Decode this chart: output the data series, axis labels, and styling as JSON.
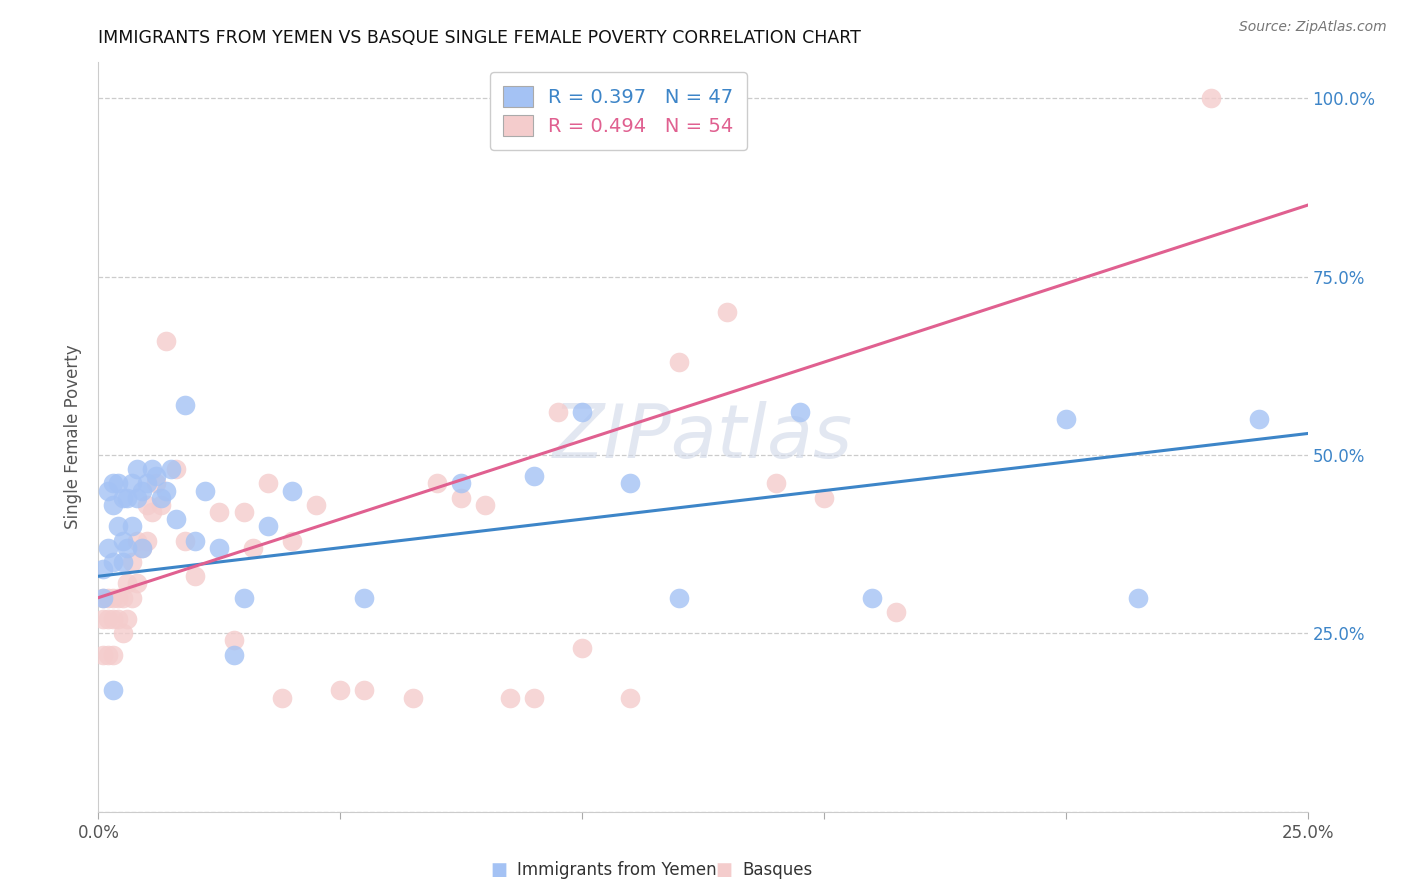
{
  "title": "IMMIGRANTS FROM YEMEN VS BASQUE SINGLE FEMALE POVERTY CORRELATION CHART",
  "source": "Source: ZipAtlas.com",
  "ylabel": "Single Female Poverty",
  "legend1_label": "Immigrants from Yemen",
  "legend2_label": "Basques",
  "xlim": [
    0,
    0.25
  ],
  "ylim": [
    0,
    1.05
  ],
  "xticks": [
    0.0,
    0.05,
    0.1,
    0.15,
    0.2,
    0.25
  ],
  "xtick_labels": [
    "0.0%",
    "",
    "",
    "",
    "",
    "25.0%"
  ],
  "ytick_right": [
    0.0,
    0.25,
    0.5,
    0.75,
    1.0
  ],
  "ytick_right_labels": [
    "",
    "25.0%",
    "50.0%",
    "75.0%",
    "100.0%"
  ],
  "r1": "0.397",
  "n1": "47",
  "r2": "0.494",
  "n2": "54",
  "color_blue_fill": "#a4c2f4",
  "color_pink_fill": "#f4cccc",
  "color_blue_line": "#3d85c8",
  "color_pink_line": "#e06090",
  "color_blue_text": "#3d85c8",
  "color_pink_text": "#e06090",
  "background": "#ffffff",
  "grid_color": "#cccccc",
  "blue_x": [
    0.001,
    0.001,
    0.002,
    0.002,
    0.003,
    0.003,
    0.003,
    0.004,
    0.004,
    0.005,
    0.005,
    0.005,
    0.006,
    0.006,
    0.007,
    0.007,
    0.008,
    0.008,
    0.009,
    0.009,
    0.01,
    0.011,
    0.012,
    0.013,
    0.014,
    0.015,
    0.016,
    0.018,
    0.02,
    0.022,
    0.025,
    0.028,
    0.03,
    0.035,
    0.04,
    0.055,
    0.075,
    0.09,
    0.1,
    0.11,
    0.12,
    0.145,
    0.16,
    0.2,
    0.215,
    0.24,
    0.003
  ],
  "blue_y": [
    0.34,
    0.3,
    0.45,
    0.37,
    0.46,
    0.43,
    0.35,
    0.46,
    0.4,
    0.44,
    0.38,
    0.35,
    0.44,
    0.37,
    0.46,
    0.4,
    0.48,
    0.44,
    0.45,
    0.37,
    0.46,
    0.48,
    0.47,
    0.44,
    0.45,
    0.48,
    0.41,
    0.57,
    0.38,
    0.45,
    0.37,
    0.22,
    0.3,
    0.4,
    0.45,
    0.3,
    0.46,
    0.47,
    0.56,
    0.46,
    0.3,
    0.56,
    0.3,
    0.55,
    0.3,
    0.55,
    0.17
  ],
  "pink_x": [
    0.001,
    0.001,
    0.001,
    0.002,
    0.002,
    0.002,
    0.003,
    0.003,
    0.003,
    0.004,
    0.004,
    0.005,
    0.005,
    0.006,
    0.006,
    0.007,
    0.007,
    0.008,
    0.008,
    0.009,
    0.01,
    0.01,
    0.011,
    0.012,
    0.013,
    0.014,
    0.016,
    0.018,
    0.02,
    0.025,
    0.028,
    0.03,
    0.032,
    0.035,
    0.038,
    0.04,
    0.045,
    0.05,
    0.055,
    0.065,
    0.07,
    0.075,
    0.08,
    0.085,
    0.09,
    0.095,
    0.1,
    0.11,
    0.12,
    0.13,
    0.14,
    0.15,
    0.165,
    0.23
  ],
  "pink_y": [
    0.3,
    0.27,
    0.22,
    0.3,
    0.27,
    0.22,
    0.3,
    0.27,
    0.22,
    0.3,
    0.27,
    0.3,
    0.25,
    0.32,
    0.27,
    0.35,
    0.3,
    0.38,
    0.32,
    0.37,
    0.43,
    0.38,
    0.42,
    0.46,
    0.43,
    0.66,
    0.48,
    0.38,
    0.33,
    0.42,
    0.24,
    0.42,
    0.37,
    0.46,
    0.16,
    0.38,
    0.43,
    0.17,
    0.17,
    0.16,
    0.46,
    0.44,
    0.43,
    0.16,
    0.16,
    0.56,
    0.23,
    0.16,
    0.63,
    0.7,
    0.46,
    0.44,
    0.28,
    1.0
  ]
}
